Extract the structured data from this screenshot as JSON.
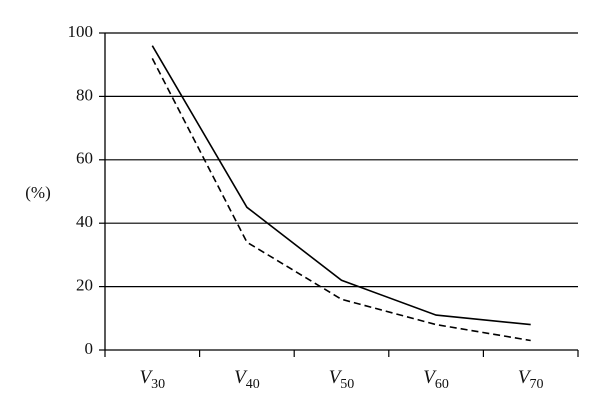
{
  "chart_data": {
    "type": "line",
    "categories": [
      {
        "base": "V",
        "sub": "30"
      },
      {
        "base": "V",
        "sub": "40"
      },
      {
        "base": "V",
        "sub": "50"
      },
      {
        "base": "V",
        "sub": "60"
      },
      {
        "base": "V",
        "sub": "70"
      }
    ],
    "series": [
      {
        "style": "solid",
        "color": "#000000",
        "values": [
          96,
          45,
          22,
          11,
          8
        ]
      },
      {
        "style": "dashed",
        "color": "#000000",
        "values": [
          92,
          34,
          16,
          8,
          3
        ]
      }
    ],
    "ylabel": "(%)",
    "ylim": [
      0,
      100
    ],
    "yticks": [
      0,
      20,
      40,
      60,
      80,
      100
    ],
    "grid": "horizontal",
    "legend": "none"
  }
}
